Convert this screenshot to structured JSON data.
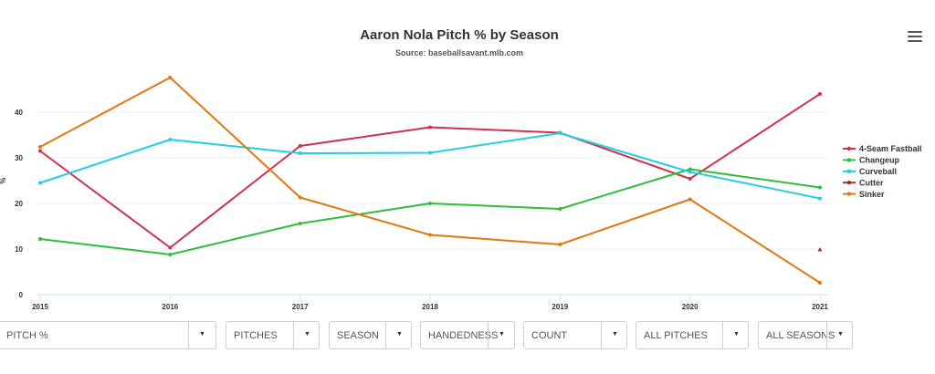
{
  "chart_data": {
    "type": "line",
    "title": "Aaron Nola Pitch % by Season",
    "subtitle": "Source: baseballsavant.mlb.com",
    "ylabel": "%",
    "x": [
      "2015",
      "2016",
      "2017",
      "2018",
      "2019",
      "2020",
      "2021"
    ],
    "ylim": [
      0,
      50
    ],
    "yticks": [
      "0",
      "10",
      "20",
      "30",
      "40"
    ],
    "grid": true,
    "legend_position": "right",
    "series": [
      {
        "name": "4-Seam Fastball",
        "color": "#d1314f",
        "values": [
          31.5,
          10.3,
          32.6,
          36.7,
          35.5,
          25.4,
          44.0
        ]
      },
      {
        "name": "Changeup",
        "color": "#2ebd3c",
        "values": [
          12.2,
          8.8,
          15.6,
          20.0,
          18.8,
          27.5,
          23.5
        ]
      },
      {
        "name": "Curveball",
        "color": "#25cde0",
        "values": [
          24.5,
          34.0,
          31.0,
          31.1,
          35.4,
          26.9,
          21.1
        ]
      },
      {
        "name": "Cutter",
        "color": "#a0311d",
        "values": [
          null,
          null,
          null,
          null,
          null,
          null,
          9.9
        ]
      },
      {
        "name": "Sinker",
        "color": "#e2770f",
        "values": [
          32.4,
          47.6,
          21.3,
          13.1,
          11.0,
          20.9,
          2.6
        ]
      }
    ]
  },
  "controls": [
    {
      "label": "PITCH %"
    },
    {
      "label": "PITCHES"
    },
    {
      "label": "SEASON"
    },
    {
      "label": "HANDEDNESS"
    },
    {
      "label": "COUNT"
    },
    {
      "label": "ALL PITCHES"
    },
    {
      "label": "ALL SEASONS"
    }
  ],
  "icons": {
    "menu": "hamburger-menu-icon",
    "caret": "caret-down-icon"
  }
}
